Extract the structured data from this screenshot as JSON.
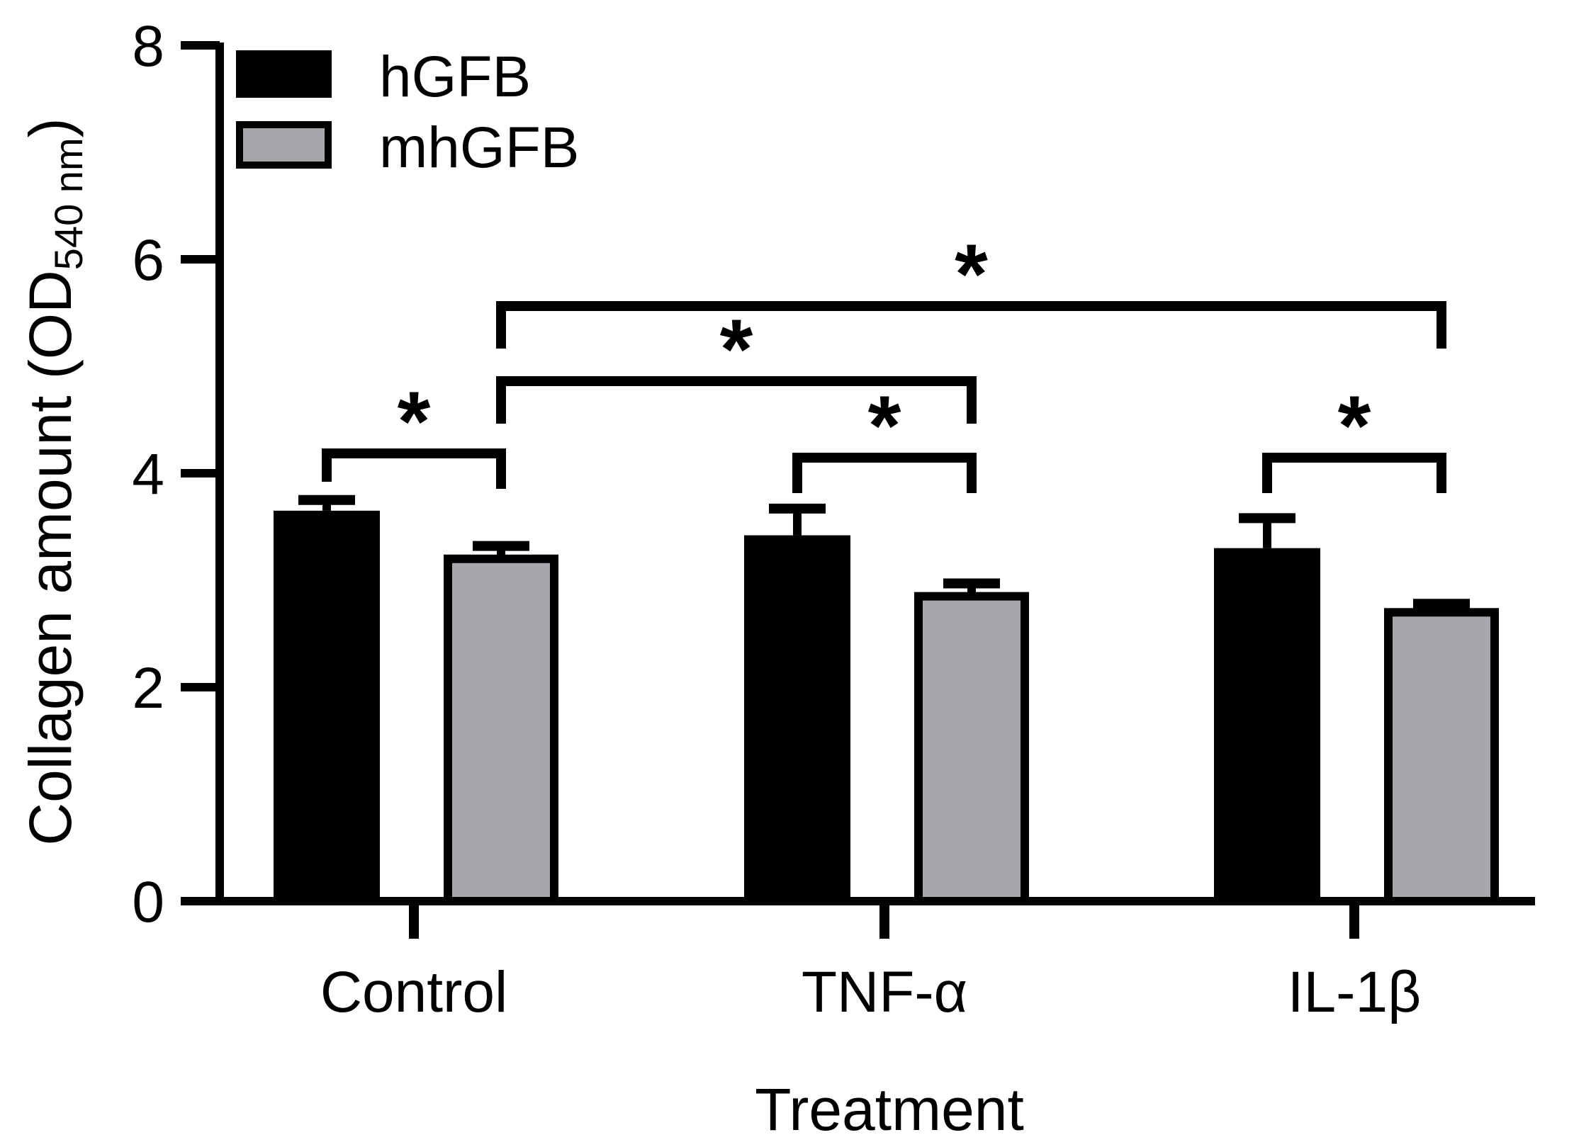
{
  "chart_data": {
    "type": "bar",
    "title": "",
    "xlabel": "Treatment",
    "ylabel": "Collagen amount (OD",
    "ylabel_subscript": "540 nm",
    "ylabel_close": ")",
    "categories": [
      "Control",
      "TNF-α",
      "IL-1β"
    ],
    "ylim": [
      0,
      8
    ],
    "yticks": [
      0,
      2,
      4,
      6,
      8
    ],
    "ytick_labels": [
      "0",
      "2",
      "4",
      "6",
      "8"
    ],
    "legend_position": "top-left",
    "series": [
      {
        "name": "hGFB",
        "color": "#000000",
        "values": [
          3.65,
          3.42,
          3.3
        ],
        "errors": [
          0.1,
          0.25,
          0.28
        ]
      },
      {
        "name": "mhGFB",
        "color": "#a7a6ab",
        "values": [
          3.2,
          2.85,
          2.7
        ],
        "errors": [
          0.12,
          0.12,
          0.08
        ]
      }
    ],
    "significance": [
      {
        "from": "Control/hGFB",
        "to": "Control/mhGFB",
        "label": "*"
      },
      {
        "from": "TNF-α/hGFB",
        "to": "TNF-α/mhGFB",
        "label": "*"
      },
      {
        "from": "IL-1β/hGFB",
        "to": "IL-1β/mhGFB",
        "label": "*"
      },
      {
        "from": "Control/mhGFB",
        "to": "TNF-α/mhGFB",
        "label": "*"
      },
      {
        "from": "Control/mhGFB",
        "to": "IL-1β/mhGFB",
        "label": "*"
      }
    ]
  }
}
